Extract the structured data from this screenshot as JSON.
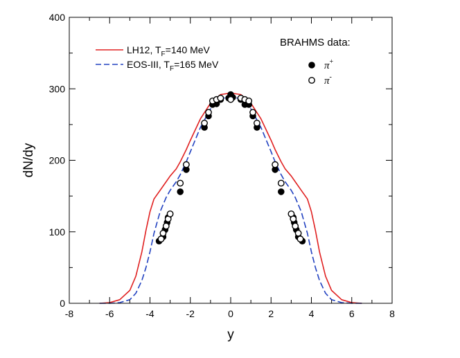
{
  "chart_data": {
    "type": "line",
    "xlabel": "y",
    "ylabel": "dN/dy",
    "xlim": [
      -8,
      8
    ],
    "ylim": [
      0,
      400
    ],
    "x_ticks": [
      -8,
      -6,
      -4,
      -2,
      0,
      2,
      4,
      6,
      8
    ],
    "y_ticks": [
      0,
      100,
      200,
      300,
      400
    ],
    "legend": {
      "placement": "top-left",
      "entries": [
        {
          "main": "LH12, T",
          "sub": "F",
          "rest": "=140 MeV"
        },
        {
          "main": "EOS-III, T",
          "sub": "F",
          "rest": "=165 MeV"
        }
      ]
    },
    "data_legend": {
      "placement": "top-right",
      "title": "BRAHMS data:",
      "entries": [
        {
          "symbol": "π",
          "sup": "+"
        },
        {
          "symbol": "π",
          "sup": "-"
        }
      ]
    },
    "series": [
      {
        "style": "solid",
        "color": "#e02020",
        "x": [
          -6.5,
          -6.0,
          -5.5,
          -5.0,
          -4.7,
          -4.4,
          -4.2,
          -4.0,
          -3.8,
          -3.5,
          -3.2,
          -3.0,
          -2.7,
          -2.5,
          -2.2,
          -2.0,
          -1.5,
          -1.0,
          -0.5,
          0.0,
          0.5,
          1.0,
          1.5,
          2.0,
          2.2,
          2.5,
          2.7,
          3.0,
          3.2,
          3.5,
          3.8,
          4.0,
          4.2,
          4.4,
          4.7,
          5.0,
          5.5,
          6.0,
          6.5
        ],
        "y": [
          0,
          1,
          5,
          18,
          38,
          72,
          102,
          128,
          146,
          158,
          170,
          178,
          188,
          198,
          215,
          228,
          258,
          280,
          292,
          294,
          292,
          280,
          258,
          228,
          215,
          198,
          188,
          178,
          170,
          158,
          146,
          128,
          102,
          72,
          38,
          18,
          5,
          1,
          0
        ]
      },
      {
        "style": "dashed",
        "color": "#2040c0",
        "x": [
          -6.5,
          -6.0,
          -5.5,
          -5.0,
          -4.7,
          -4.4,
          -4.2,
          -4.0,
          -3.8,
          -3.5,
          -3.2,
          -3.0,
          -2.7,
          -2.5,
          -2.2,
          -2.0,
          -1.5,
          -1.0,
          -0.5,
          0.0,
          0.5,
          1.0,
          1.5,
          2.0,
          2.2,
          2.5,
          2.7,
          3.0,
          3.2,
          3.5,
          3.8,
          4.0,
          4.2,
          4.4,
          4.7,
          5.0,
          5.5,
          6.0,
          6.5
        ],
        "y": [
          0,
          0,
          1,
          5,
          14,
          32,
          50,
          72,
          98,
          128,
          148,
          158,
          170,
          180,
          198,
          212,
          246,
          272,
          286,
          289,
          286,
          272,
          246,
          212,
          198,
          180,
          170,
          158,
          148,
          128,
          98,
          72,
          50,
          32,
          14,
          5,
          1,
          0,
          0
        ]
      },
      {
        "style": "filled-circle",
        "color": "#000000",
        "x": [
          -3.55,
          -3.45,
          -3.35,
          -3.25,
          -3.15,
          -3.1,
          -2.5,
          -2.2,
          -1.3,
          -1.1,
          -0.9,
          -0.7,
          -0.5,
          -0.1,
          0.0,
          0.1,
          0.5,
          0.7,
          0.9,
          1.1,
          1.3,
          2.2,
          2.5,
          3.1,
          3.15,
          3.25,
          3.35,
          3.45,
          3.55
        ],
        "y": [
          87,
          90,
          93,
          103,
          113,
          120,
          156,
          187,
          246,
          262,
          278,
          279,
          285,
          287,
          292,
          288,
          285,
          278,
          278,
          262,
          246,
          187,
          156,
          120,
          113,
          103,
          93,
          90,
          87
        ]
      },
      {
        "style": "open-circle",
        "color": "#000000",
        "x": [
          -3.45,
          -3.35,
          -3.2,
          -3.1,
          -3.0,
          -2.5,
          -2.2,
          -1.3,
          -1.1,
          -0.9,
          -0.7,
          -0.5,
          0.0,
          0.5,
          0.7,
          0.9,
          1.1,
          1.3,
          2.2,
          2.5,
          3.0,
          3.1,
          3.2,
          3.35,
          3.45
        ],
        "y": [
          90,
          98,
          108,
          118,
          125,
          168,
          194,
          252,
          267,
          283,
          285,
          287,
          285,
          287,
          285,
          283,
          267,
          252,
          194,
          168,
          125,
          118,
          108,
          98,
          90
        ]
      }
    ]
  }
}
